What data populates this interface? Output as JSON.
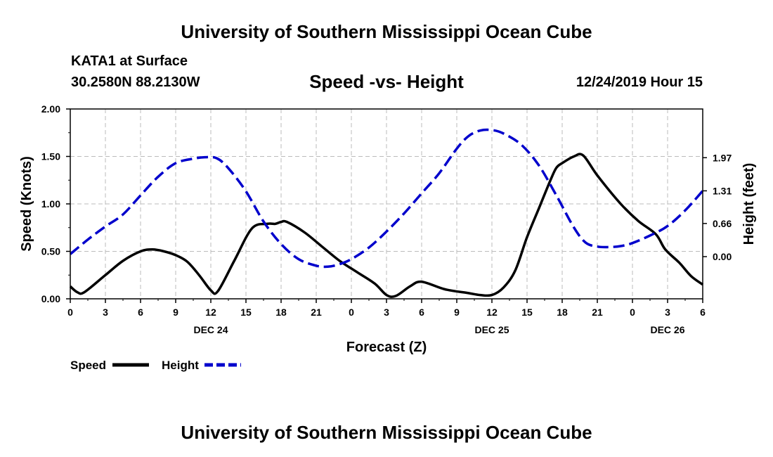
{
  "page": {
    "top_title": "University of Southern Mississippi Ocean Cube",
    "bottom_title": "University of Southern Mississippi Ocean Cube",
    "station": "KATA1 at Surface",
    "coords": "30.2580N 88.2130W",
    "datetime": "12/24/2019 Hour 15"
  },
  "colors": {
    "speed": "#000000",
    "height": "#0000cc",
    "grid": "#bbbbbb"
  },
  "chart_data": {
    "type": "line",
    "title": "Speed -vs- Height",
    "xlabel": "Forecast (Z)",
    "ylabel": "Speed (Knots)",
    "y2label": "Height (feet)",
    "xlim": [
      0,
      54
    ],
    "ylim": [
      0,
      2.0
    ],
    "y2lim": [
      -0.84,
      2.94
    ],
    "x_ticks": [
      0,
      3,
      6,
      9,
      12,
      15,
      18,
      21,
      24,
      27,
      30,
      33,
      36,
      39,
      42,
      45,
      48,
      51,
      54
    ],
    "x_tick_labels": [
      "0",
      "3",
      "6",
      "9",
      "12",
      "15",
      "18",
      "21",
      "0",
      "3",
      "6",
      "9",
      "12",
      "15",
      "18",
      "21",
      "0",
      "3",
      "6"
    ],
    "day_labels": [
      {
        "x": 12,
        "label": "DEC 24"
      },
      {
        "x": 36,
        "label": "DEC 25"
      },
      {
        "x": 51,
        "label": "DEC 26"
      }
    ],
    "y_ticks": [
      0.0,
      0.5,
      1.0,
      1.5,
      2.0
    ],
    "y_tick_labels": [
      "0.00",
      "0.50",
      "1.00",
      "1.50",
      "2.00"
    ],
    "y2_ticks": [
      0.0,
      0.66,
      1.31,
      1.97
    ],
    "y2_tick_labels": [
      "0.00",
      "0.66",
      "1.31",
      "1.97"
    ],
    "series": [
      {
        "name": "Speed",
        "axis": "left",
        "style": "solid",
        "x": [
          0,
          0.6,
          1.2,
          3,
          4.5,
          6,
          7,
          8,
          9,
          10,
          11,
          12,
          12.6,
          14,
          15.5,
          16.8,
          17.5,
          18,
          18.5,
          20,
          21.5,
          23,
          24.5,
          26,
          27,
          27.8,
          29,
          30,
          32,
          34,
          35,
          36,
          37,
          38,
          39,
          40,
          41,
          41.5,
          42,
          43,
          43.8,
          45,
          47,
          48.5,
          50,
          50.8,
          52,
          53,
          54
        ],
        "values": [
          0.13,
          0.07,
          0.07,
          0.25,
          0.4,
          0.5,
          0.52,
          0.5,
          0.46,
          0.39,
          0.25,
          0.09,
          0.08,
          0.4,
          0.74,
          0.79,
          0.79,
          0.81,
          0.81,
          0.7,
          0.55,
          0.4,
          0.28,
          0.16,
          0.04,
          0.03,
          0.13,
          0.18,
          0.1,
          0.06,
          0.04,
          0.04,
          0.12,
          0.3,
          0.65,
          0.95,
          1.25,
          1.38,
          1.43,
          1.5,
          1.51,
          1.3,
          1.0,
          0.82,
          0.68,
          0.52,
          0.38,
          0.24,
          0.15
        ]
      },
      {
        "name": "Height",
        "axis": "right",
        "style": "dashed",
        "x": [
          0,
          1.5,
          3,
          4.5,
          6,
          7.5,
          9,
          10.5,
          11.5,
          12.5,
          13.5,
          15,
          16.5,
          18,
          19.5,
          21,
          22,
          23,
          24,
          25.5,
          27,
          28.5,
          30,
          31.5,
          33,
          34,
          35,
          36,
          37,
          38.5,
          40,
          41.5,
          43,
          44,
          45,
          46,
          47,
          48,
          49.5,
          51,
          52.5,
          54
        ],
        "values": [
          0.05,
          0.34,
          0.6,
          0.84,
          1.22,
          1.59,
          1.86,
          1.95,
          1.98,
          1.96,
          1.76,
          1.3,
          0.7,
          0.25,
          -0.05,
          -0.18,
          -0.2,
          -0.15,
          -0.05,
          0.18,
          0.5,
          0.86,
          1.26,
          1.66,
          2.15,
          2.4,
          2.51,
          2.52,
          2.45,
          2.23,
          1.82,
          1.22,
          0.58,
          0.28,
          0.2,
          0.19,
          0.21,
          0.27,
          0.42,
          0.61,
          0.92,
          1.31
        ]
      }
    ],
    "legend": [
      "Speed",
      "Height"
    ]
  }
}
